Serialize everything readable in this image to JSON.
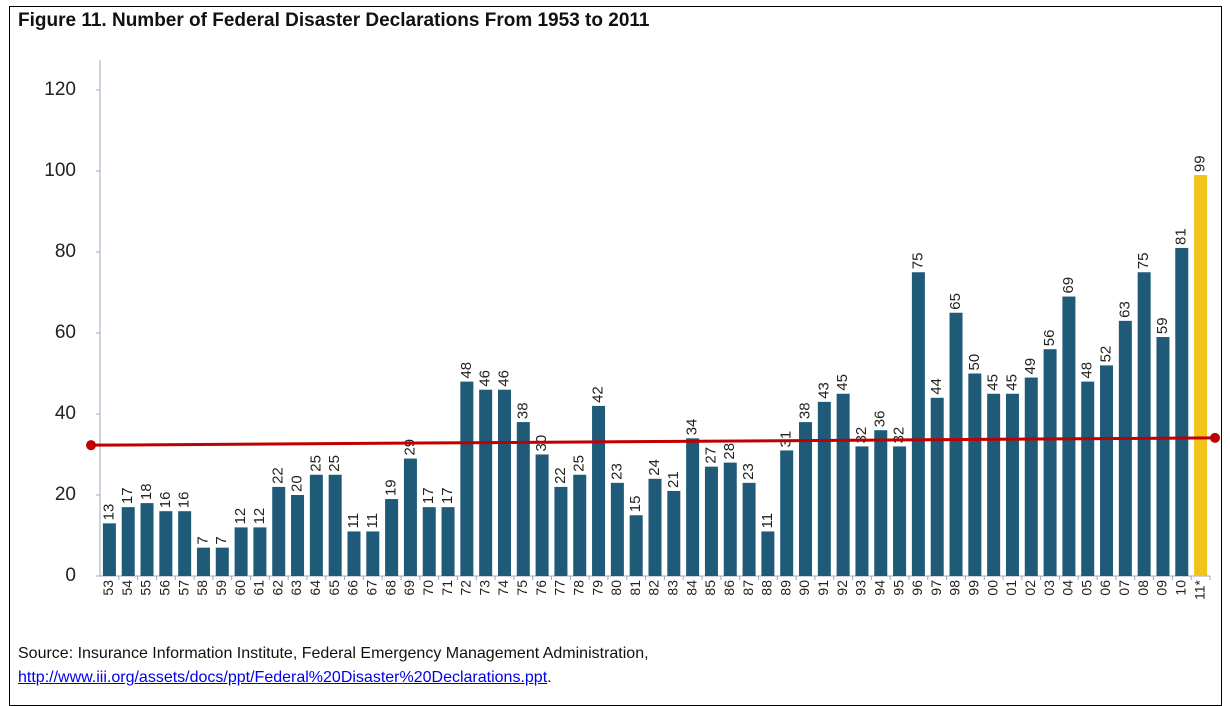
{
  "chart_data": {
    "type": "bar",
    "title": "Figure 11. Number of Federal Disaster Declarations From 1953 to 2011",
    "categories": [
      "53",
      "54",
      "55",
      "56",
      "57",
      "58",
      "59",
      "60",
      "61",
      "62",
      "63",
      "64",
      "65",
      "66",
      "67",
      "68",
      "69",
      "70",
      "71",
      "72",
      "73",
      "74",
      "75",
      "76",
      "77",
      "78",
      "79",
      "80",
      "81",
      "82",
      "83",
      "84",
      "85",
      "86",
      "87",
      "88",
      "89",
      "90",
      "91",
      "92",
      "93",
      "94",
      "95",
      "96",
      "97",
      "98",
      "99",
      "00",
      "01",
      "02",
      "03",
      "04",
      "05",
      "06",
      "07",
      "08",
      "09",
      "10",
      "11*"
    ],
    "values": [
      13,
      17,
      18,
      16,
      16,
      7,
      7,
      12,
      12,
      22,
      20,
      25,
      25,
      11,
      11,
      19,
      29,
      17,
      17,
      48,
      46,
      46,
      38,
      30,
      22,
      25,
      42,
      23,
      15,
      24,
      21,
      34,
      27,
      28,
      23,
      11,
      31,
      38,
      43,
      45,
      32,
      36,
      32,
      75,
      44,
      65,
      50,
      45,
      45,
      49,
      56,
      69,
      48,
      52,
      63,
      75,
      59,
      81,
      99
    ],
    "colors": [
      "#1f5a78",
      "#1f5a78",
      "#1f5a78",
      "#1f5a78",
      "#1f5a78",
      "#1f5a78",
      "#1f5a78",
      "#1f5a78",
      "#1f5a78",
      "#1f5a78",
      "#1f5a78",
      "#1f5a78",
      "#1f5a78",
      "#1f5a78",
      "#1f5a78",
      "#1f5a78",
      "#1f5a78",
      "#1f5a78",
      "#1f5a78",
      "#1f5a78",
      "#1f5a78",
      "#1f5a78",
      "#1f5a78",
      "#1f5a78",
      "#1f5a78",
      "#1f5a78",
      "#1f5a78",
      "#1f5a78",
      "#1f5a78",
      "#1f5a78",
      "#1f5a78",
      "#1f5a78",
      "#1f5a78",
      "#1f5a78",
      "#1f5a78",
      "#1f5a78",
      "#1f5a78",
      "#1f5a78",
      "#1f5a78",
      "#1f5a78",
      "#1f5a78",
      "#1f5a78",
      "#1f5a78",
      "#1f5a78",
      "#1f5a78",
      "#1f5a78",
      "#1f5a78",
      "#1f5a78",
      "#1f5a78",
      "#1f5a78",
      "#1f5a78",
      "#1f5a78",
      "#1f5a78",
      "#1f5a78",
      "#1f5a78",
      "#1f5a78",
      "#1f5a78",
      "#1f5a78",
      "#f2c318"
    ],
    "ylim": [
      0,
      120
    ],
    "yticks": [
      0,
      20,
      40,
      60,
      80,
      100,
      120
    ],
    "grid": false,
    "trend": {
      "color": "#c00000",
      "values": [
        32.3,
        34.1
      ]
    },
    "source": {
      "text": "Source: Insurance Information Institute, Federal Emergency Management Administration,",
      "link": "http://www.iii.org/assets/docs/ppt/Federal%20Disaster%20Declarations.ppt",
      "end": "."
    }
  }
}
